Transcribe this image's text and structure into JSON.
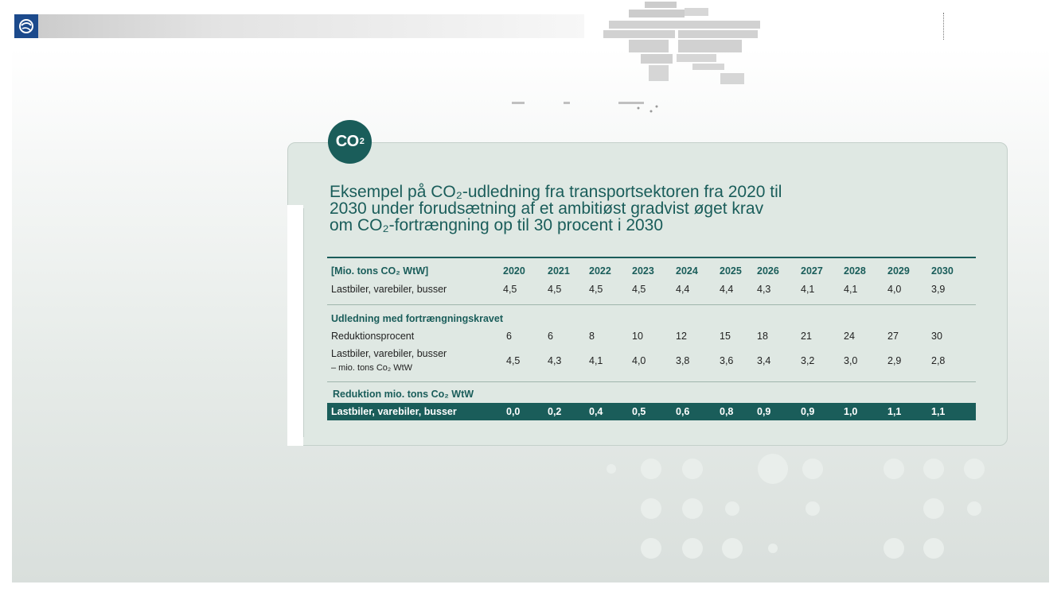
{
  "badge": {
    "text": "CO",
    "sup": "2"
  },
  "title": {
    "line1": "Eksempel på CO₂-udledning fra transportsektoren fra 2020 til",
    "line2": "2030 under forudsætning af et ambitiøst gradvist øget krav",
    "line3": "om CO₂-fortrængning op til 30 procent i 2030"
  },
  "table": {
    "unit_label": "[Mio. tons CO₂ WtW]",
    "years": [
      "2020",
      "2021",
      "2022",
      "2023",
      "2024",
      "2025",
      "2026",
      "2027",
      "2028",
      "2029",
      "2030"
    ],
    "row_baseline": {
      "label": "Lastbiler, varebiler, busser",
      "values": [
        "4,5",
        "4,5",
        "4,5",
        "4,5",
        "4,4",
        "4,4",
        "4,3",
        "4,1",
        "4,1",
        "4,0",
        "3,9"
      ]
    },
    "section_displacement": "Udledning med fortrængningskravet",
    "row_percent": {
      "label": "Reduktionsprocent",
      "values": [
        "6",
        "6",
        "8",
        "10",
        "12",
        "15",
        "18",
        "21",
        "24",
        "27",
        "30"
      ]
    },
    "row_with_req": {
      "label_line1": "Lastbiler, varebiler, busser",
      "label_line2": "– mio. tons Co₂ WtW",
      "values": [
        "4,5",
        "4,3",
        "4,1",
        "4,0",
        "3,8",
        "3,6",
        "3,4",
        "3,2",
        "3,0",
        "2,9",
        "2,8"
      ]
    },
    "section_reduction": "Reduktion mio. tons Co₂ WtW",
    "row_reduction": {
      "label": "Lastbiler, varebiler, busser",
      "values": [
        "0,0",
        "0,2",
        "0,4",
        "0,5",
        "0,6",
        "0,8",
        "0,9",
        "0,9",
        "1,0",
        "1,1",
        "1,1"
      ]
    }
  },
  "colors": {
    "accent": "#1a5d5a",
    "card": "#dfe8e3",
    "logo": "#1c4a8c"
  }
}
